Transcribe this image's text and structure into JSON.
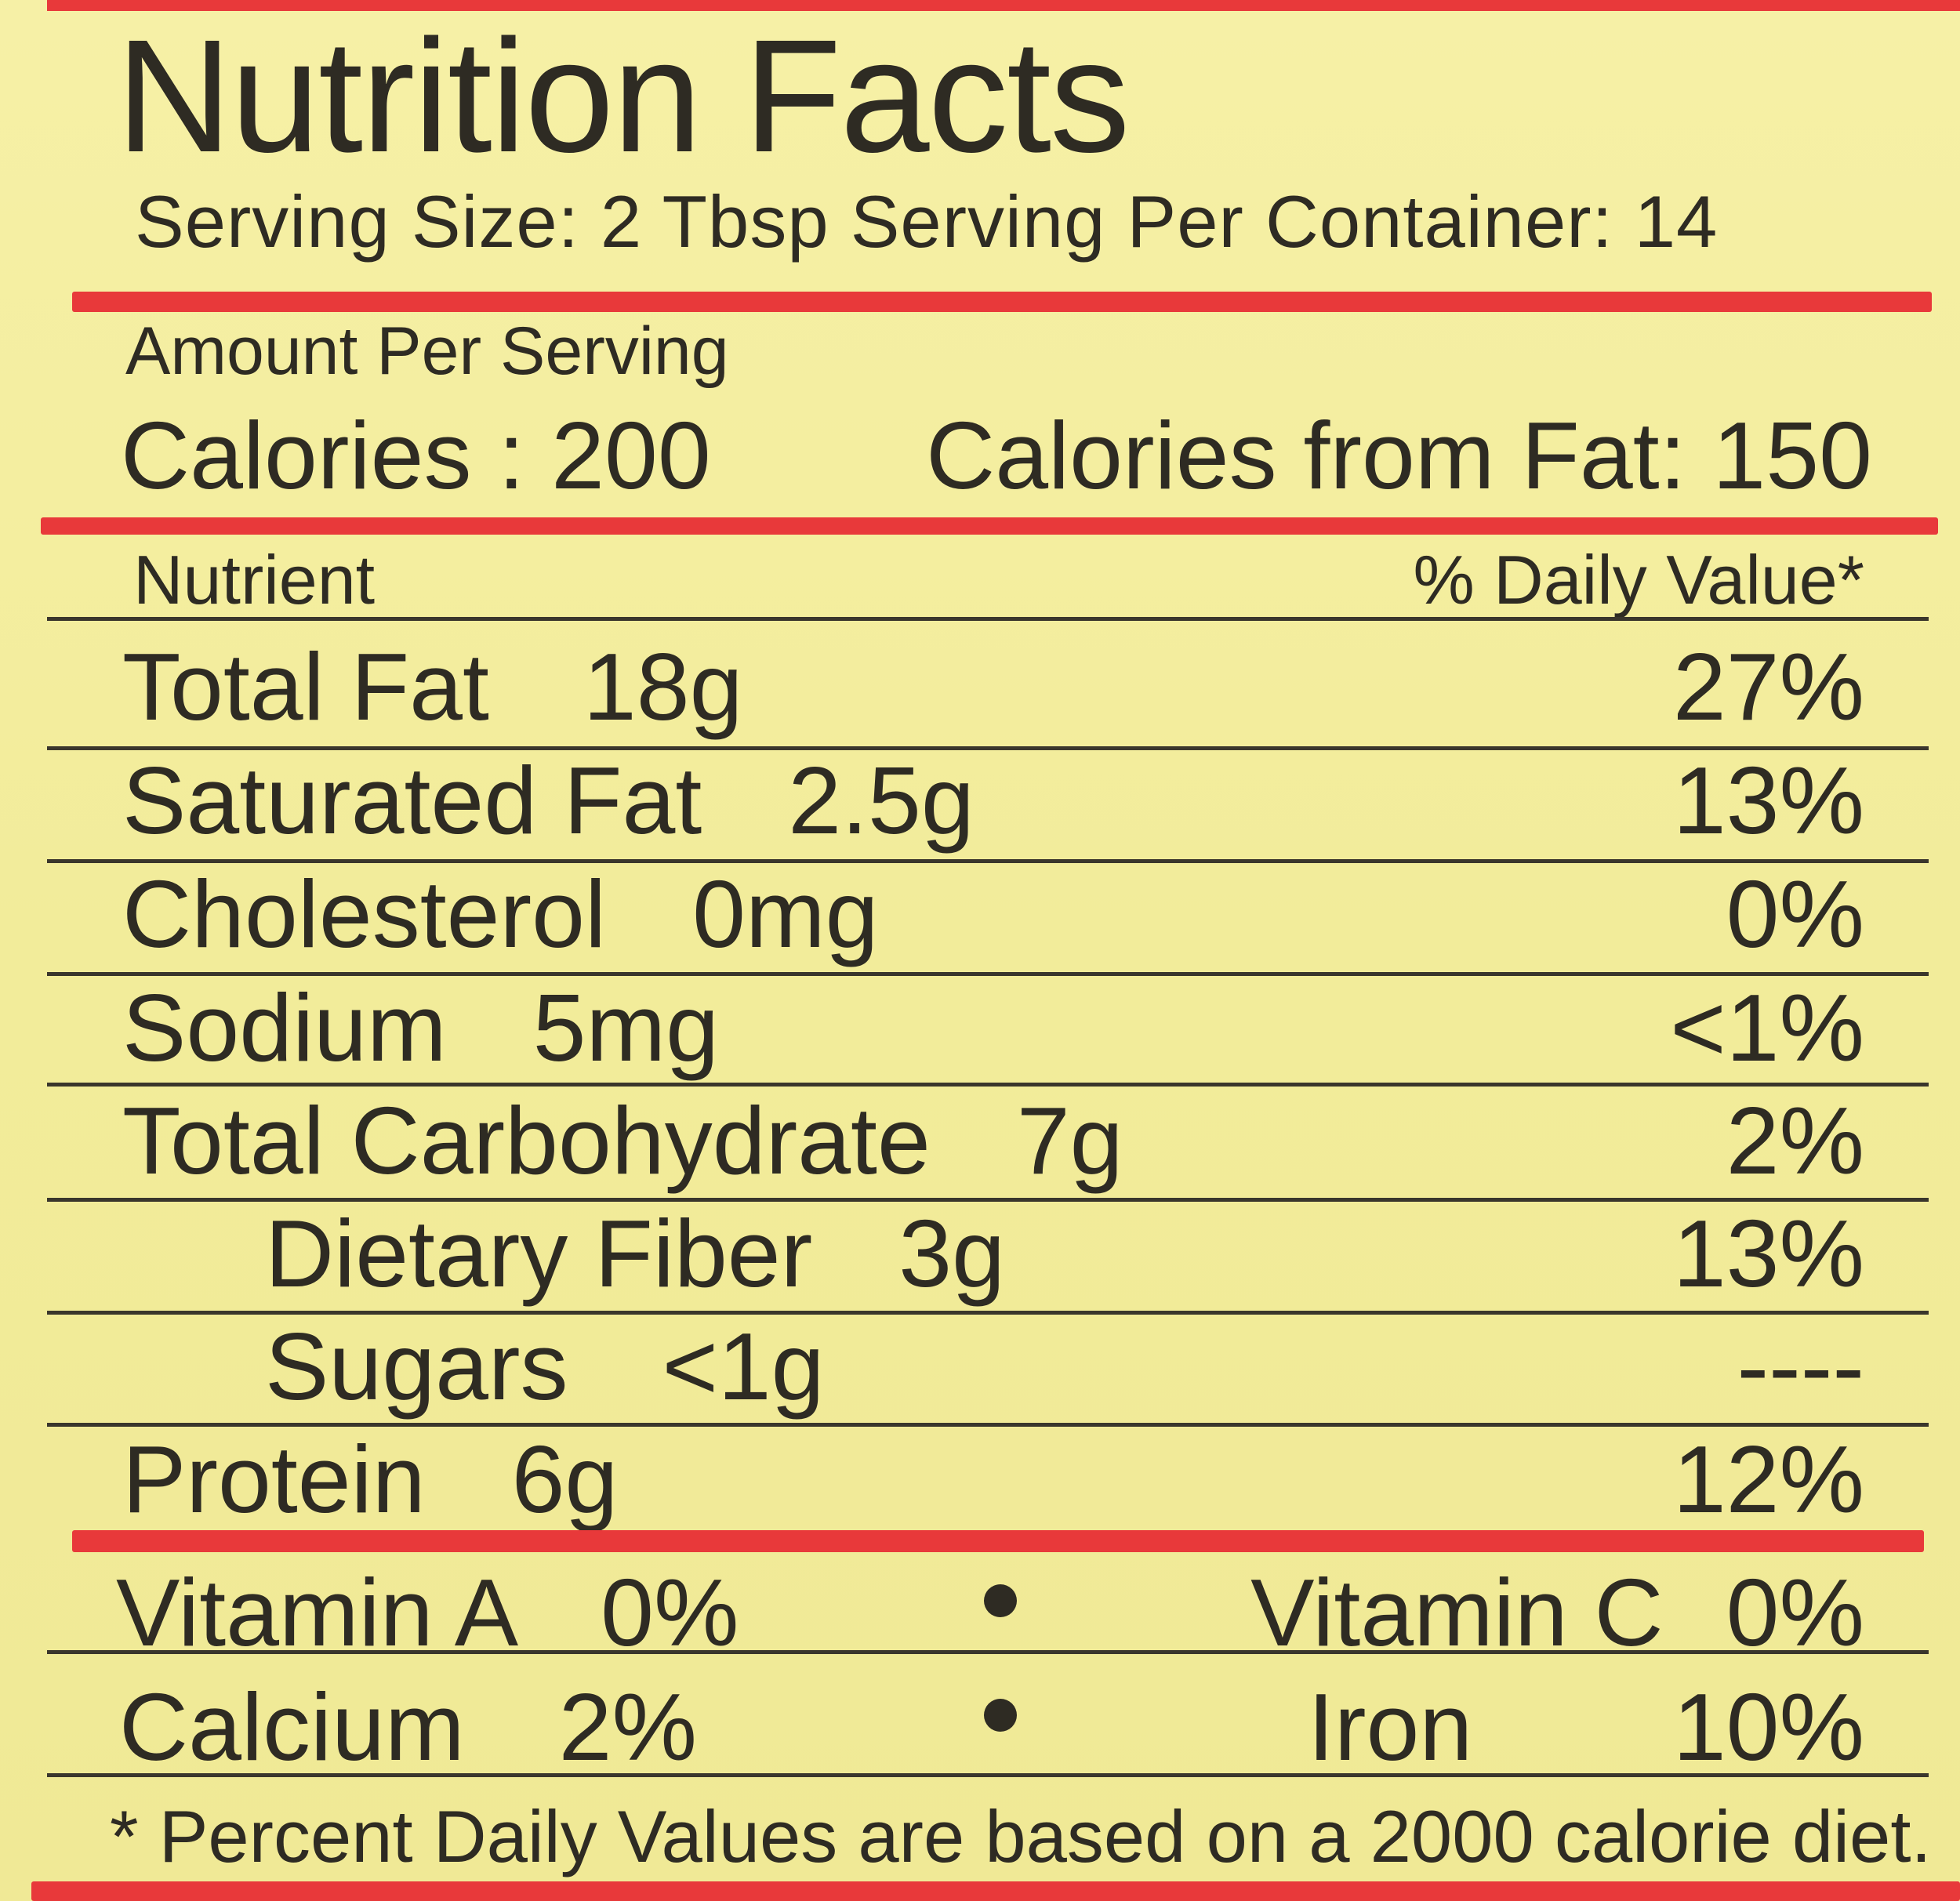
{
  "title": "Nutrition Facts",
  "serving_line": "Serving Size: 2 Tbsp Serving Per Container: 14",
  "amount_per_serving": "Amount Per Serving",
  "calories": "Calories : 200",
  "calories_from_fat": "Calories from Fat:  150",
  "columns": {
    "nutrient": "Nutrient",
    "daily_value": "% Daily Value*"
  },
  "nutrients": [
    {
      "name": "Total Fat",
      "amount": "18g",
      "dv": "27%"
    },
    {
      "name": "Saturated Fat",
      "amount": "2.5g",
      "dv": "13%"
    },
    {
      "name": "Cholesterol",
      "amount": "0mg",
      "dv": "0%"
    },
    {
      "name": "Sodium",
      "amount": "5mg",
      "dv": "<1%"
    },
    {
      "name": "Total Carbohydrate",
      "amount": "7g",
      "dv": "2%"
    },
    {
      "name": "Dietary Fiber",
      "amount": "3g",
      "dv": "13%"
    },
    {
      "name": "Sugars",
      "amount": "<1g",
      "dv": "----"
    },
    {
      "name": "Protein",
      "amount": "6g",
      "dv": "12%"
    }
  ],
  "vitamins": {
    "vitamin_a": {
      "name": "Vitamin A",
      "value": "0%"
    },
    "vitamin_c": {
      "name": "Vitamin C",
      "value": "0%"
    },
    "calcium": {
      "name": "Calcium",
      "value": "2%"
    },
    "iron": {
      "name": "Iron",
      "value": "10%"
    }
  },
  "footnote": "* Percent Daily Values are based on a 2000 calorie diet.",
  "colors": {
    "background": "#f4ee9f",
    "accent_red": "#e8393a",
    "text": "#2e2b23"
  }
}
